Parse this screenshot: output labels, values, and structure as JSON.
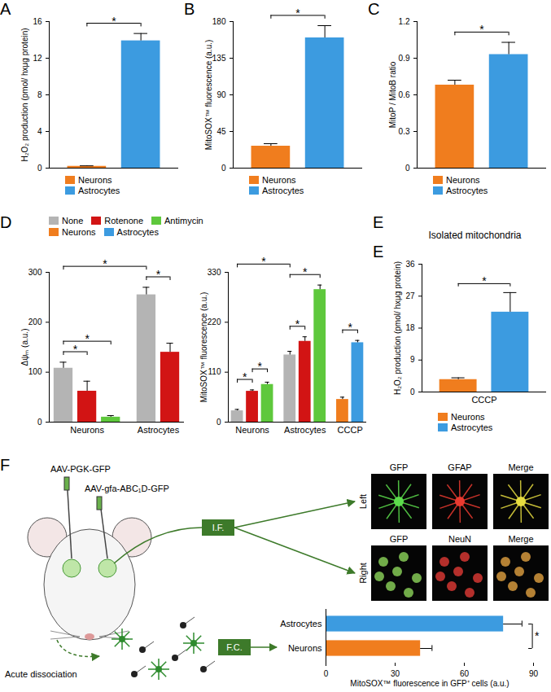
{
  "chart_data": [
    {
      "panel": "A",
      "type": "bar",
      "categories": [
        "Neurons",
        "Astrocytes"
      ],
      "values": [
        0.2,
        13.9
      ],
      "errors": [
        0.05,
        0.8
      ],
      "colors": [
        "#f07d1e",
        "#3c9be0"
      ],
      "ylabel": "H₂O₂ production (pmol/ hxμg protein)",
      "ylim": [
        0,
        16
      ],
      "yticks": [
        0,
        4,
        8,
        12,
        16
      ],
      "tick_labels": "y",
      "significance": [
        {
          "between": [
            "Neurons",
            "Astrocytes"
          ],
          "label": "*"
        }
      ]
    },
    {
      "panel": "B",
      "type": "bar",
      "categories": [
        "Neurons",
        "Astrocytes"
      ],
      "values": [
        27,
        160
      ],
      "errors": [
        3,
        15
      ],
      "colors": [
        "#f07d1e",
        "#3c9be0"
      ],
      "ylabel": "MitoSOX™ fluorescence (a.u.)",
      "ylim": [
        0,
        180
      ],
      "yticks": [
        0,
        45,
        90,
        135,
        180
      ],
      "tick_labels": "y",
      "significance": [
        {
          "between": [
            "Neurons",
            "Astrocytes"
          ],
          "label": "*"
        }
      ]
    },
    {
      "panel": "C",
      "type": "bar",
      "categories": [
        "Neurons",
        "Astrocytes"
      ],
      "values": [
        0.68,
        0.93
      ],
      "errors": [
        0.04,
        0.1
      ],
      "colors": [
        "#f07d1e",
        "#3c9be0"
      ],
      "ylabel": "MitoP / MitoB ratio",
      "ylim": [
        0,
        1.2
      ],
      "yticks": [
        0,
        0.3,
        0.6,
        0.9,
        1.2
      ],
      "tick_labels": "y",
      "significance": [
        {
          "between": [
            "Neurons",
            "Astrocytes"
          ],
          "label": "*"
        }
      ]
    },
    {
      "panel": "D",
      "type": "bar",
      "tick_labels": "y",
      "series": [
        {
          "name": "None",
          "color": "#b4b4b4"
        },
        {
          "name": "Rotenone",
          "color": "#d21414"
        },
        {
          "name": "Antimycin",
          "color": "#5ec83c"
        },
        {
          "name": "Neurons",
          "color": "#f07d1e"
        },
        {
          "name": "Astrocytes",
          "color": "#3c9be0"
        }
      ],
      "subplots": [
        {
          "ylabel": "Δψₘ (a.u.)",
          "ylim": [
            0,
            300
          ],
          "yticks": [
            0,
            100,
            200,
            300
          ],
          "groups": [
            {
              "name": "Neurons",
              "bars": [
                {
                  "series": "None",
                  "value": 108,
                  "error": 12
                },
                {
                  "series": "Rotenone",
                  "value": 62,
                  "error": 20
                },
                {
                  "series": "Antimycin",
                  "value": 10,
                  "error": 3
                }
              ]
            },
            {
              "name": "Astrocytes",
              "bars": [
                {
                  "series": "None",
                  "value": 255,
                  "error": 15
                },
                {
                  "series": "Rotenone",
                  "value": 140,
                  "error": 18
                }
              ]
            }
          ],
          "significance": [
            {
              "between": [
                [
                  "Neurons",
                  "None"
                ],
                [
                  "Neurons",
                  "Rotenone"
                ]
              ],
              "label": "*"
            },
            {
              "between": [
                [
                  "Neurons",
                  "None"
                ],
                [
                  "Neurons",
                  "Antimycin"
                ]
              ],
              "label": "*"
            },
            {
              "between": [
                [
                  "Astrocytes",
                  "None"
                ],
                [
                  "Astrocytes",
                  "Rotenone"
                ]
              ],
              "label": "*"
            },
            {
              "between": [
                [
                  "Neurons",
                  "None"
                ],
                [
                  "Astrocytes",
                  "None"
                ]
              ],
              "label": "*"
            }
          ]
        },
        {
          "ylabel": "MitoSOX™ fluorescence (a.u.)",
          "ylim": [
            0,
            330
          ],
          "yticks": [
            0,
            110,
            220,
            330
          ],
          "groups": [
            {
              "name": "Neurons",
              "bars": [
                {
                  "series": "None",
                  "value": 25,
                  "error": 3
                },
                {
                  "series": "Rotenone",
                  "value": 68,
                  "error": 3
                },
                {
                  "series": "Antimycin",
                  "value": 83,
                  "error": 5
                }
              ]
            },
            {
              "name": "Astrocytes",
              "bars": [
                {
                  "series": "None",
                  "value": 148,
                  "error": 8
                },
                {
                  "series": "Rotenone",
                  "value": 178,
                  "error": 10
                },
                {
                  "series": "Antimycin",
                  "value": 292,
                  "error": 10
                }
              ]
            },
            {
              "name": "CCCP",
              "bars": [
                {
                  "series": "Neurons",
                  "value": 50,
                  "error": 5
                },
                {
                  "series": "Astrocytes",
                  "value": 175,
                  "error": 5
                }
              ]
            }
          ],
          "significance": [
            {
              "between": [
                [
                  "Neurons",
                  "None"
                ],
                [
                  "Neurons",
                  "Rotenone"
                ]
              ],
              "label": "*"
            },
            {
              "between": [
                [
                  "Neurons",
                  "Rotenone"
                ],
                [
                  "Neurons",
                  "Antimycin"
                ]
              ],
              "label": "*"
            },
            {
              "between": [
                [
                  "Astrocytes",
                  "None"
                ],
                [
                  "Astrocytes",
                  "Rotenone"
                ]
              ],
              "label": "*"
            },
            {
              "between": [
                [
                  "Astrocytes",
                  "None"
                ],
                [
                  "Astrocytes",
                  "Antimycin"
                ]
              ],
              "label": "*"
            },
            {
              "between": [
                [
                  "Neurons",
                  "None"
                ],
                [
                  "Astrocytes",
                  "None"
                ]
              ],
              "label": "*"
            },
            {
              "between": [
                [
                  "CCCP",
                  "Neurons"
                ],
                [
                  "CCCP",
                  "Astrocytes"
                ]
              ],
              "label": "*"
            }
          ]
        }
      ]
    },
    {
      "panel": "E",
      "type": "bar",
      "title": "Isolated mitochondria",
      "xlabel": "CCCP",
      "categories": [
        "Neurons",
        "Astrocytes"
      ],
      "values": [
        3.5,
        22.5
      ],
      "errors": [
        0.5,
        5.5
      ],
      "colors": [
        "#f07d1e",
        "#3c9be0"
      ],
      "ylabel": "H₂O₂ production (pmol/ hxμg protein)",
      "ylim": [
        0,
        36
      ],
      "yticks": [
        0,
        9,
        18,
        27,
        36
      ],
      "tick_labels": "y",
      "significance": [
        {
          "between": [
            "Neurons",
            "Astrocytes"
          ],
          "label": "*"
        }
      ]
    },
    {
      "panel": "F",
      "type": "bar",
      "orientation": "horizontal",
      "categories": [
        "Astrocytes",
        "Neurons"
      ],
      "values": [
        77,
        41
      ],
      "errors": [
        8,
        5
      ],
      "colors": [
        "#3c9be0",
        "#f07d1e"
      ],
      "xlabel": "MitoSOX™ fluorescence in GFP⁺ cells (a.u.)",
      "xlim": [
        0,
        90
      ],
      "xticks": [
        0,
        30,
        60,
        90
      ],
      "tick_labels": "x",
      "significance": [
        {
          "between": [
            "Astrocytes",
            "Neurons"
          ],
          "label": "*"
        }
      ],
      "diagram": {
        "injections": [
          "AAV-PGK-GFP",
          "AAV-gfa-ABC₁D-GFP"
        ],
        "steps": [
          "I.F.",
          "F.C."
        ],
        "dissociation": "Acute dissociation",
        "images": [
          {
            "row": "Left",
            "columns": [
              "GFP",
              "GFAP",
              "Merge"
            ]
          },
          {
            "row": "Right",
            "columns": [
              "GFP",
              "NeuN",
              "Merge"
            ]
          }
        ]
      }
    }
  ]
}
